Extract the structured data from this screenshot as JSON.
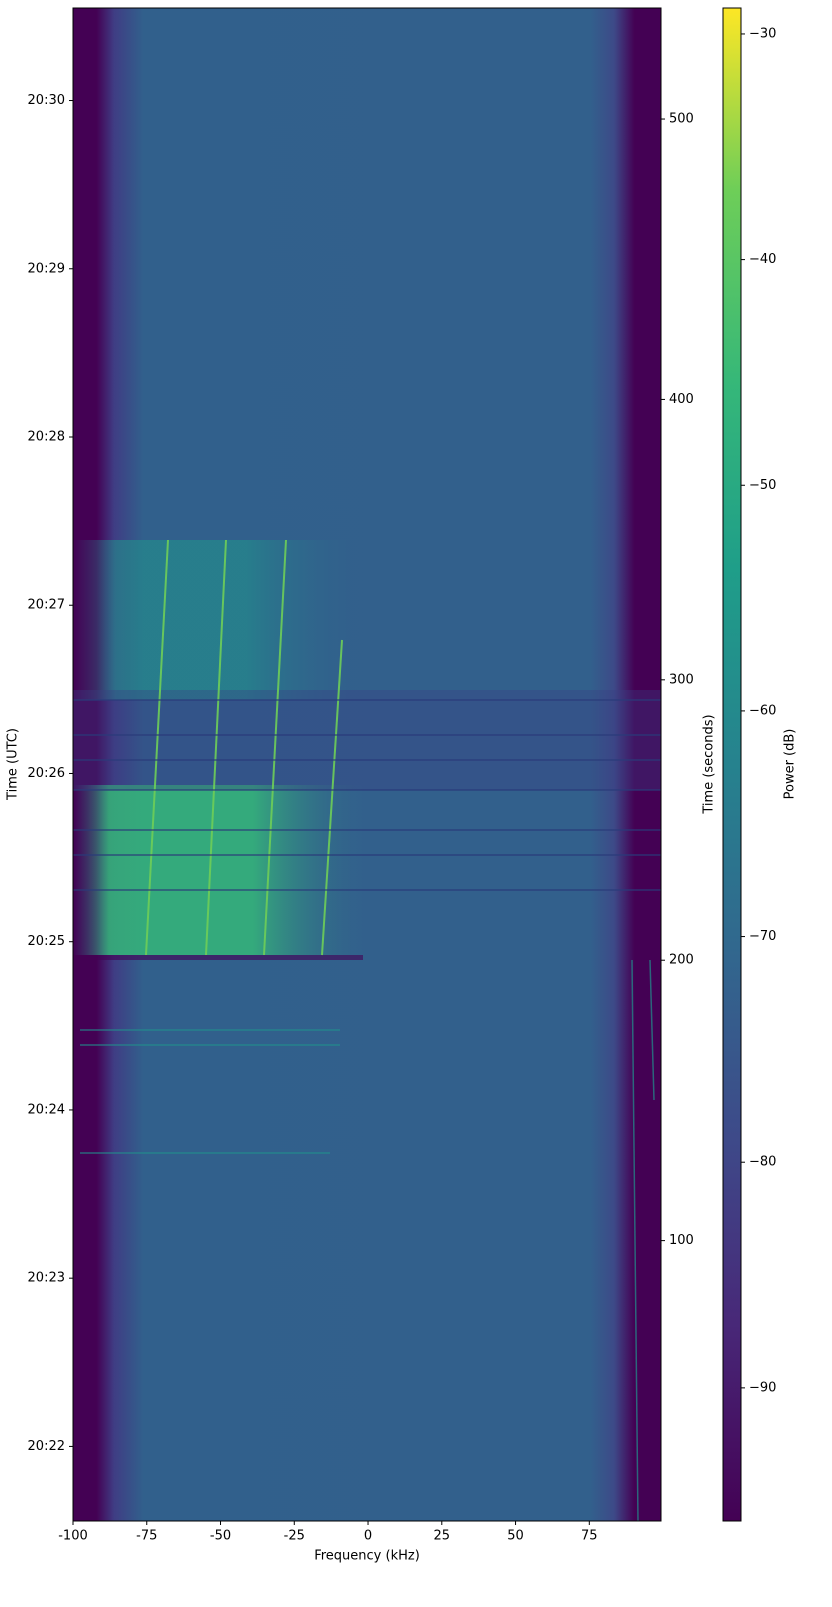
{
  "chart_data": {
    "type": "spectrogram",
    "xlabel": "Frequency (kHz)",
    "ylabel": "Time (UTC)",
    "y2label": "Time (seconds)",
    "colorbar_label": "Power (dB)",
    "colormap": "viridis",
    "xlim": [
      -100,
      99.3
    ],
    "xticks": [
      -100,
      -75,
      -50,
      -25,
      0,
      25,
      50,
      75
    ],
    "ylim": [
      0,
      539.6
    ],
    "yticks": [
      {
        "value": 26.6,
        "label": "20:22"
      },
      {
        "value": 86.6,
        "label": "20:23"
      },
      {
        "value": 146.6,
        "label": "20:24"
      },
      {
        "value": 206.6,
        "label": "20:25"
      },
      {
        "value": 266.6,
        "label": "20:26"
      },
      {
        "value": 326.6,
        "label": "20:27"
      },
      {
        "value": 386.6,
        "label": "20:28"
      },
      {
        "value": 446.6,
        "label": "20:29"
      },
      {
        "value": 506.6,
        "label": "20:30"
      }
    ],
    "y2lim": [
      0,
      539.6
    ],
    "y2ticks": [
      100,
      200,
      300,
      400,
      500
    ],
    "clim": [
      -95.9,
      -28.85
    ],
    "cticks": [
      {
        "value": -30,
        "label": "−30"
      },
      {
        "value": -40,
        "label": "−40"
      },
      {
        "value": -50,
        "label": "−50"
      },
      {
        "value": -60,
        "label": "−60"
      },
      {
        "value": -70,
        "label": "−70"
      },
      {
        "value": -80,
        "label": "−80"
      },
      {
        "value": -90,
        "label": "−90"
      }
    ]
  }
}
